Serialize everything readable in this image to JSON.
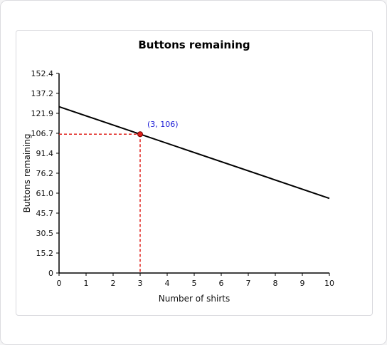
{
  "chart_data": {
    "type": "line",
    "title": "Buttons remaining",
    "xlabel": "Number of shirts",
    "ylabel": "Buttons remaining",
    "xlim": [
      0,
      10
    ],
    "ylim": [
      0,
      152.4
    ],
    "x_ticks": [
      "0",
      "1",
      "2",
      "3",
      "4",
      "5",
      "6",
      "7",
      "8",
      "9",
      "10"
    ],
    "y_ticks": [
      "0",
      "15.2",
      "30.5",
      "45.7",
      "61.0",
      "76.2",
      "91.4",
      "106.7",
      "121.9",
      "137.2",
      "152.4"
    ],
    "grid": false,
    "series": [
      {
        "x": [
          0,
          10
        ],
        "y": [
          127,
          57
        ]
      }
    ],
    "highlight": {
      "x": 3,
      "y": 106,
      "label": "(3, 106)"
    },
    "colors": {
      "line": "#000000",
      "guide": "#e0201b",
      "point": "#e0201b",
      "point_label": "#1a1ad6"
    }
  }
}
